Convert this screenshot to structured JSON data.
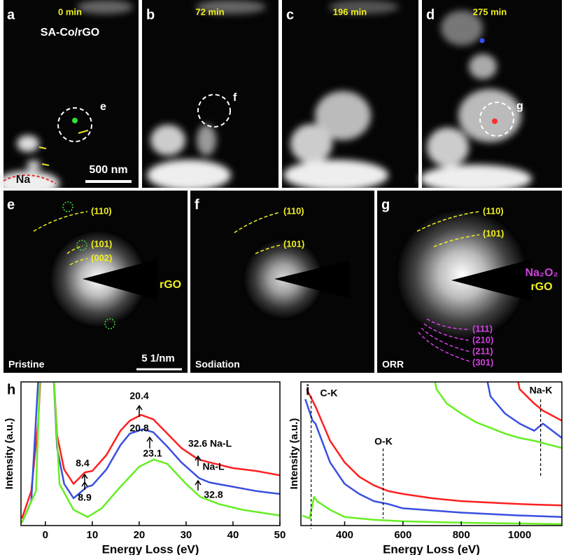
{
  "image_panels": [
    {
      "letter": "a",
      "time": "0 min",
      "sample": "SA-Co/rGO",
      "region": "Na",
      "scale_bar": "500 nm",
      "marker": "e"
    },
    {
      "letter": "b",
      "time": "72 min",
      "marker": "f"
    },
    {
      "letter": "c",
      "time": "196 min"
    },
    {
      "letter": "d",
      "time": "275 min",
      "marker": "g"
    }
  ],
  "diffraction_panels": [
    {
      "letter": "e",
      "condition": "Pristine",
      "scale_bar": "5 1/nm",
      "phase_labels": [
        "rGO"
      ],
      "rings": [
        "(110)",
        "(101)",
        "(002)"
      ]
    },
    {
      "letter": "f",
      "condition": "Sodiation",
      "rings": [
        "(110)",
        "(101)"
      ]
    },
    {
      "letter": "g",
      "condition": "ORR",
      "phase_labels": [
        "Na₂O₂",
        "rGO"
      ],
      "rings": [
        "(110)",
        "(101)"
      ],
      "na2o2_rings": [
        "(111)",
        "(210)",
        "(211)",
        "(301)"
      ]
    }
  ],
  "chart_data": [
    {
      "type": "line",
      "label": "h",
      "x_label": "Energy Loss (eV)",
      "y_label": "Intensity (a.u.)",
      "xlim": [
        -5.2,
        50
      ],
      "xticks": [
        0,
        10,
        20,
        30,
        40,
        50
      ],
      "ylim": [
        0,
        100
      ],
      "series": [
        {
          "color": "#ff2020",
          "x": [
            -5,
            -3,
            -1.5,
            -0.8,
            1.5,
            2.5,
            4,
            6,
            8.4,
            10,
            13,
            16,
            18,
            20.4,
            23,
            26,
            29,
            32.6,
            35,
            40,
            45,
            50
          ],
          "values": [
            5,
            24,
            73,
            120,
            120,
            63,
            39,
            29,
            37,
            38,
            49,
            66,
            73,
            77,
            74,
            64,
            54,
            46,
            44,
            40,
            38,
            35
          ]
        },
        {
          "color": "#3a4fe0",
          "x": [
            -5,
            -3,
            -1.2,
            1.5,
            2.5,
            4,
            6,
            8.9,
            10,
            13,
            16,
            18,
            20.8,
            23,
            26,
            29,
            32.8,
            35,
            40,
            45,
            50
          ],
          "values": [
            2,
            17,
            120,
            120,
            54,
            29,
            19,
            27,
            28,
            39,
            56,
            64,
            67,
            65,
            55,
            44,
            33,
            30,
            27,
            24,
            22
          ]
        },
        {
          "color": "#66ee22",
          "x": [
            -5,
            -2,
            -1,
            1.5,
            3,
            6,
            9,
            12,
            16,
            20,
            23.1,
            26,
            30,
            33,
            37,
            42,
            50
          ],
          "values": [
            2,
            24,
            120,
            120,
            29,
            11,
            6,
            12,
            27,
            41,
            46,
            43,
            29,
            20,
            15,
            11,
            7
          ]
        }
      ],
      "annotations": [
        "20.4",
        "20.8",
        "8.4",
        "8.9",
        "23.1",
        "32.6 Na-L",
        "Na-L",
        "32.8"
      ]
    },
    {
      "type": "line",
      "label": "i",
      "x_label": "Energy Loss (eV)",
      "y_label": "Intensity (a.u.)",
      "xlim": [
        250,
        1145
      ],
      "xticks": [
        400,
        600,
        800,
        1000
      ],
      "ylim": [
        0,
        100
      ],
      "series": [
        {
          "color": "#ff2020",
          "x": [
            270,
            300,
            350,
            400,
            450,
            500,
            550,
            600,
            700,
            800,
            900,
            1000,
            1145
          ],
          "values": [
            95,
            83,
            59,
            44,
            34,
            28,
            24,
            22,
            19,
            17,
            16,
            15,
            14
          ]
        },
        {
          "color": "#3a4fe0",
          "x": [
            265,
            290,
            300,
            350,
            400,
            450,
            500,
            550,
            600,
            800,
            1000,
            1145
          ],
          "values": [
            88,
            73,
            71,
            44,
            29,
            22,
            17,
            15,
            12,
            9,
            7,
            6
          ]
        },
        {
          "color": "#66ee22",
          "x": [
            255,
            280,
            295,
            305,
            350,
            400,
            500,
            600,
            800,
            1145
          ],
          "values": [
            7,
            5,
            20,
            17,
            11,
            6,
            4,
            3,
            2,
            1
          ]
        },
        {
          "color": "#ff2020",
          "x": [
            975,
            1000,
            1050,
            1080,
            1145
          ],
          "values": [
            120,
            95,
            85,
            80,
            73
          ]
        },
        {
          "color": "#3a4fe0",
          "x": [
            870,
            900,
            950,
            1000,
            1050,
            1080,
            1145
          ],
          "values": [
            120,
            90,
            78,
            71,
            66,
            71,
            61
          ]
        },
        {
          "color": "#66ee22",
          "x": [
            710,
            715,
            750,
            800,
            850,
            900,
            950,
            1000,
            1050,
            1145
          ],
          "values": [
            100,
            95,
            85,
            78,
            72,
            68,
            64,
            61,
            59,
            54
          ]
        }
      ],
      "markers": [
        {
          "value": 285,
          "label": "C-K"
        },
        {
          "value": 532,
          "label": "O-K"
        },
        {
          "value": 1072,
          "label": "Na-K"
        }
      ]
    }
  ]
}
